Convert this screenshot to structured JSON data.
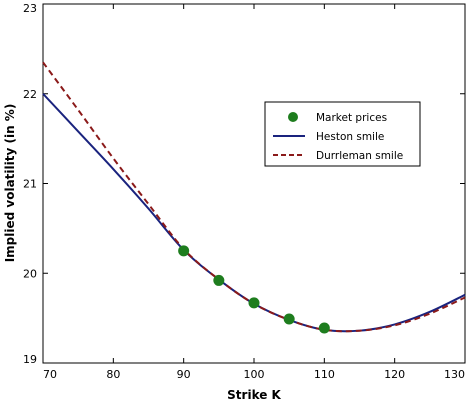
{
  "chart_data": {
    "type": "line",
    "title": "",
    "xlabel": "Strike K",
    "ylabel": "Implied volatility (in %)",
    "xlim": [
      70,
      130
    ],
    "ylim": [
      19,
      23
    ],
    "x_ticks": [
      70,
      80,
      90,
      100,
      110,
      120,
      130
    ],
    "y_ticks": [
      19,
      20,
      21,
      22,
      23
    ],
    "grid": false,
    "legend_position": "right",
    "series": [
      {
        "name": "Market prices",
        "kind": "scatter",
        "color": "#1e7d1e",
        "x": [
          90,
          95,
          100,
          105,
          110
        ],
        "y": [
          20.25,
          19.92,
          19.67,
          19.49,
          19.39
        ]
      },
      {
        "name": "Heston smile",
        "kind": "line",
        "style": "solid",
        "color": "#1a237e",
        "x": [
          70,
          75,
          80,
          85,
          90,
          95,
          100,
          105,
          110,
          115,
          120,
          125,
          130
        ],
        "y": [
          22.0,
          21.58,
          21.16,
          20.72,
          20.26,
          19.93,
          19.66,
          19.48,
          19.37,
          19.36,
          19.43,
          19.57,
          19.76
        ]
      },
      {
        "name": "Durrleman smile",
        "kind": "line",
        "style": "dashed",
        "color": "#8b1a1a",
        "x": [
          70,
          75,
          80,
          85,
          90,
          95,
          100,
          105,
          110,
          115,
          120,
          125,
          130
        ],
        "y": [
          22.35,
          21.82,
          21.28,
          20.77,
          20.27,
          19.93,
          19.66,
          19.48,
          19.37,
          19.36,
          19.42,
          19.55,
          19.73
        ]
      }
    ]
  }
}
